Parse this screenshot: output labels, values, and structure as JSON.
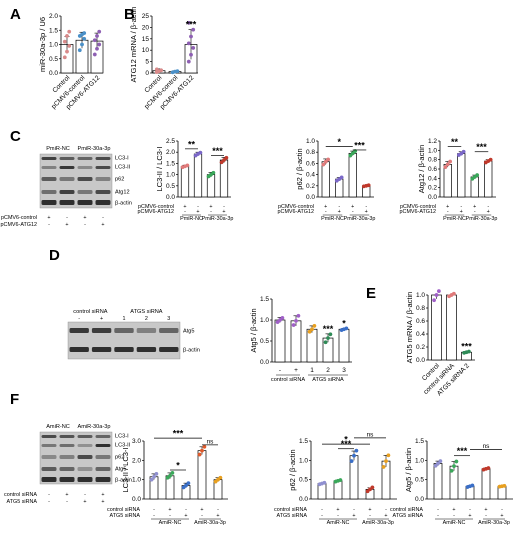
{
  "chart_data": [
    {
      "id": "A",
      "type": "bar",
      "panel_label": "A",
      "ylabel": "miR-30a-3p / U6",
      "ylim": [
        0,
        2.0
      ],
      "yticks": [
        0.0,
        0.5,
        1.0,
        1.5,
        2.0
      ],
      "categories": [
        "Control",
        "pCMV6-control",
        "pCMV6-ATG12"
      ],
      "values": [
        1.0,
        1.15,
        1.12
      ],
      "errors": [
        0.28,
        0.28,
        0.28
      ],
      "point_colors": [
        "#d98a8a",
        "#4a90c8",
        "#8e5fb3"
      ],
      "points": [
        [
          0.55,
          0.75,
          0.95,
          1.1,
          1.3,
          1.45
        ],
        [
          0.8,
          1.0,
          1.2,
          1.3,
          1.35,
          1.4
        ],
        [
          0.65,
          0.85,
          1.0,
          1.15,
          1.3,
          1.45
        ]
      ]
    },
    {
      "id": "B",
      "type": "bar",
      "panel_label": "B",
      "ylabel": "ATG12 mRNA / β-actin",
      "ylim": [
        0,
        25
      ],
      "yticks": [
        0,
        5,
        10,
        15,
        20,
        25
      ],
      "categories": [
        "Control",
        "pCMV6-control",
        "pCMV6-ATG12"
      ],
      "values": [
        1.0,
        0.6,
        12.5
      ],
      "errors": [
        0.8,
        0.4,
        6.5
      ],
      "point_colors": [
        "#d98a8a",
        "#4a90c8",
        "#8e5fb3"
      ],
      "points": [
        [
          0.4,
          0.8,
          1.2,
          1.6
        ],
        [
          0.3,
          0.6,
          0.8
        ],
        [
          5,
          8,
          11,
          13,
          16,
          19,
          22
        ]
      ],
      "sig": [
        {
          "text": "***",
          "over": 2
        }
      ]
    },
    {
      "id": "C1",
      "type": "bar",
      "ylabel": "LC3-II / LC3-I",
      "ylim": [
        0,
        2.5
      ],
      "yticks": [
        0.0,
        0.5,
        1.0,
        1.5,
        2.0,
        2.5
      ],
      "values": [
        1.37,
        1.92,
        1.0,
        1.65
      ],
      "errors": [
        0.05,
        0.08,
        0.1,
        0.12
      ],
      "point_colors": [
        "#e07a7a",
        "#7b68c8",
        "#3aa85a",
        "#c0392b"
      ],
      "points": [
        [
          1.33,
          1.37,
          1.41
        ],
        [
          1.85,
          1.92,
          1.98
        ],
        [
          0.92,
          1.0,
          1.08
        ],
        [
          1.55,
          1.65,
          1.75
        ]
      ],
      "sig": [
        {
          "text": "**",
          "a": 0,
          "b": 1,
          "level": 2.15
        },
        {
          "text": "***",
          "a": 2,
          "b": 3,
          "level": 1.85
        }
      ],
      "rows": [
        {
          "label": "pCMV6-control",
          "marks": [
            "+",
            "-",
            "+",
            "-"
          ]
        },
        {
          "label": "pCMV6-ATG12",
          "marks": [
            "-",
            "+",
            "-",
            "+"
          ]
        }
      ],
      "groups": [
        "PmiR-NC",
        "PmiR-30a-3p"
      ]
    },
    {
      "id": "C2",
      "type": "bar",
      "ylabel": "p62 / β-actin",
      "ylim": [
        0,
        1.0
      ],
      "yticks": [
        0.0,
        0.2,
        0.4,
        0.6,
        0.8,
        1.0
      ],
      "values": [
        0.63,
        0.32,
        0.78,
        0.2
      ],
      "errors": [
        0.05,
        0.03,
        0.04,
        0.01
      ],
      "point_colors": [
        "#e07a7a",
        "#7b68c8",
        "#3aa85a",
        "#c0392b"
      ],
      "points": [
        [
          0.58,
          0.63,
          0.67
        ],
        [
          0.29,
          0.32,
          0.35
        ],
        [
          0.74,
          0.78,
          0.82
        ],
        [
          0.19,
          0.2,
          0.21
        ]
      ],
      "sig": [
        {
          "text": "*",
          "a": 0,
          "b": 2,
          "level": 0.9
        },
        {
          "text": "***",
          "a": 2,
          "b": 3,
          "level": 0.84
        }
      ],
      "rows": [
        {
          "label": "pCMV6-control",
          "marks": [
            "+",
            "-",
            "+",
            "-"
          ]
        },
        {
          "label": "pCMV6-ATG12",
          "marks": [
            "-",
            "+",
            "-",
            "+"
          ]
        }
      ],
      "groups": [
        "PmiR-NC",
        "PmiR-30a-3p"
      ]
    },
    {
      "id": "C3",
      "type": "bar",
      "ylabel": "Atg12 / β-actin",
      "ylim": [
        0,
        1.2
      ],
      "yticks": [
        0.0,
        0.2,
        0.4,
        0.6,
        0.8,
        1.0,
        1.2
      ],
      "values": [
        0.7,
        0.93,
        0.43,
        0.77
      ],
      "errors": [
        0.06,
        0.04,
        0.04,
        0.03
      ],
      "point_colors": [
        "#e07a7a",
        "#7b68c8",
        "#3aa85a",
        "#c0392b"
      ],
      "points": [
        [
          0.64,
          0.7,
          0.76
        ],
        [
          0.9,
          0.93,
          0.97
        ],
        [
          0.39,
          0.43,
          0.47
        ],
        [
          0.74,
          0.77,
          0.8
        ]
      ],
      "sig": [
        {
          "text": "**",
          "a": 0,
          "b": 1,
          "level": 1.08
        },
        {
          "text": "***",
          "a": 2,
          "b": 3,
          "level": 0.97
        }
      ],
      "rows": [
        {
          "label": "pCMV6-control",
          "marks": [
            "+",
            "-",
            "+",
            "-"
          ]
        },
        {
          "label": "pCMV6-ATG12",
          "marks": [
            "-",
            "+",
            "-",
            "+"
          ]
        }
      ],
      "groups": [
        "PmiR-NC",
        "PmiR-30a-3p"
      ]
    },
    {
      "id": "D",
      "type": "bar",
      "panel_label": "D",
      "ylabel": "Atg5 / β-actin",
      "ylim": [
        0,
        1.5
      ],
      "yticks": [
        0.0,
        0.5,
        1.0,
        1.5
      ],
      "categories": [
        "-",
        "+",
        "1",
        "2",
        "3"
      ],
      "values": [
        1.0,
        0.98,
        0.78,
        0.57,
        0.78
      ],
      "errors": [
        0.06,
        0.12,
        0.08,
        0.1,
        0.02
      ],
      "point_colors": [
        "#a060c8",
        "#a060c8",
        "#e8a020",
        "#2e8b57",
        "#3a6fc8"
      ],
      "points": [
        [
          0.95,
          1.0,
          1.05
        ],
        [
          0.88,
          0.98,
          1.1
        ],
        [
          0.72,
          0.78,
          0.86
        ],
        [
          0.47,
          0.57,
          0.66
        ],
        [
          0.76,
          0.78,
          0.8
        ]
      ],
      "sig": [
        {
          "text": "***",
          "over": 3
        },
        {
          "text": "*",
          "over": 4
        }
      ],
      "group_labels": [
        "control siRNA",
        "ATG5 siRNA"
      ]
    },
    {
      "id": "E",
      "type": "bar",
      "panel_label": "E",
      "ylabel": "ATG5 mRNA / β-actin",
      "ylim": [
        0,
        1.0
      ],
      "yticks": [
        0.0,
        0.2,
        0.4,
        0.6,
        0.8,
        1.0
      ],
      "categories": [
        "Control",
        "control siRNA",
        "ATG5 siRNA 2"
      ],
      "values": [
        1.0,
        1.0,
        0.12
      ],
      "errors": [
        0.06,
        0.02,
        0.01
      ],
      "point_colors": [
        "#a060c8",
        "#e07a7a",
        "#2e8b57"
      ],
      "points": [
        [
          0.92,
          1.0,
          1.06
        ],
        [
          0.98,
          1.0,
          1.02
        ],
        [
          0.11,
          0.12,
          0.13
        ]
      ],
      "sig": [
        {
          "text": "***",
          "over": 2
        }
      ]
    },
    {
      "id": "F1",
      "type": "bar",
      "panel_label": "F",
      "ylabel": "LC3-II / LC3-I",
      "ylim": [
        0,
        3
      ],
      "yticks": [
        0,
        1,
        2,
        3
      ],
      "values": [
        1.15,
        1.2,
        0.7,
        2.5,
        1.0
      ],
      "errors": [
        0.15,
        0.15,
        0.12,
        0.2,
        0.1
      ],
      "point_colors": [
        "#9090d0",
        "#3aa85a",
        "#3a6fc8",
        "#e05a2a",
        "#e8a020"
      ],
      "points": [
        [
          1.0,
          1.15,
          1.3
        ],
        [
          1.1,
          1.2,
          1.35
        ],
        [
          0.6,
          0.7,
          0.82
        ],
        [
          2.3,
          2.5,
          2.7
        ],
        [
          0.9,
          1.0,
          1.1
        ]
      ],
      "sig": [
        {
          "text": "*",
          "a": 1,
          "b": 2,
          "level": 1.5
        },
        {
          "text": "***",
          "a": 0,
          "b": 3,
          "level": 3.15
        },
        {
          "text": "ns",
          "a": 3,
          "b": 4,
          "level": 2.8
        }
      ],
      "rows": [
        {
          "label": "control siRNA",
          "marks": [
            "-",
            "+",
            "-",
            "+",
            "-"
          ]
        },
        {
          "label": "ATG5 siRNA",
          "marks": [
            "-",
            "-",
            "+",
            "-",
            "+"
          ]
        }
      ],
      "groups": [
        "AmiR-NC",
        "AmiR-30a-3p"
      ]
    },
    {
      "id": "F2",
      "type": "bar",
      "ylabel": "p62 / β-actin",
      "ylim": [
        0,
        1.5
      ],
      "yticks": [
        0.0,
        0.5,
        1.0,
        1.5
      ],
      "values": [
        0.4,
        0.47,
        1.12,
        0.25,
        0.98
      ],
      "errors": [
        0.02,
        0.02,
        0.12,
        0.04,
        0.15
      ],
      "point_colors": [
        "#9090d0",
        "#3aa85a",
        "#3a6fc8",
        "#c0392b",
        "#e8a020"
      ],
      "points": [
        [
          0.38,
          0.4,
          0.42
        ],
        [
          0.45,
          0.47,
          0.49
        ],
        [
          0.98,
          1.12,
          1.25
        ],
        [
          0.2,
          0.25,
          0.3
        ],
        [
          0.83,
          0.98,
          1.13
        ]
      ],
      "sig": [
        {
          "text": "***",
          "a": 1,
          "b": 2,
          "level": 1.3
        },
        {
          "text": "*",
          "a": 0,
          "b": 3,
          "level": 1.42
        },
        {
          "text": "ns",
          "a": 2,
          "b": 4,
          "level": 1.58
        }
      ],
      "rows": [
        {
          "label": "control siRNA",
          "marks": [
            "-",
            "+",
            "-",
            "+",
            "-"
          ]
        },
        {
          "label": "ATG5 siRNA",
          "marks": [
            "-",
            "-",
            "+",
            "-",
            "+"
          ]
        }
      ],
      "groups": [
        "AmiR-NC",
        "AmiR-30a-3p"
      ]
    },
    {
      "id": "F3",
      "type": "bar",
      "ylabel": "Atg5 / β-actin",
      "ylim": [
        0,
        1.5
      ],
      "yticks": [
        0.0,
        0.5,
        1.0,
        1.5
      ],
      "values": [
        0.92,
        0.85,
        0.33,
        0.78,
        0.33
      ],
      "errors": [
        0.06,
        0.12,
        0.02,
        0.02,
        0.01
      ],
      "point_colors": [
        "#9090d0",
        "#3aa85a",
        "#3a6fc8",
        "#c0392b",
        "#e8a020"
      ],
      "points": [
        [
          0.86,
          0.92,
          0.98
        ],
        [
          0.73,
          0.85,
          0.97
        ],
        [
          0.31,
          0.33,
          0.35
        ],
        [
          0.76,
          0.78,
          0.8
        ],
        [
          0.32,
          0.33,
          0.34
        ]
      ],
      "sig": [
        {
          "text": "***",
          "a": 1,
          "b": 2,
          "level": 1.12
        },
        {
          "text": "ns",
          "a": 2,
          "b": 4,
          "level": 1.28
        }
      ],
      "rows": [
        {
          "label": "control siRNA",
          "marks": [
            "-",
            "+",
            "-",
            "+",
            "-"
          ]
        },
        {
          "label": "ATG5 siRNA",
          "marks": [
            "-",
            "-",
            "+",
            "-",
            "+"
          ]
        }
      ],
      "groups": [
        "AmiR-NC",
        "AmiR-30a-3p"
      ]
    }
  ],
  "labels": {
    "C": "C"
  },
  "blots": {
    "C": {
      "headers": [
        "PmiR-NC",
        "PmiR-30a-3p"
      ],
      "bands": [
        "LC3-I",
        "LC3-II",
        "p62",
        "Atg12",
        "β-actin"
      ],
      "rows": [
        {
          "label": "pCMV6-control",
          "marks": [
            "+",
            "-",
            "+",
            "-"
          ]
        },
        {
          "label": "pCMV6-ATG12",
          "marks": [
            "-",
            "+",
            "-",
            "+"
          ]
        }
      ]
    },
    "D": {
      "headers": [
        "control siRNA",
        "ATGS siRNA"
      ],
      "lanes": [
        "-",
        "+",
        "1",
        "2",
        "3"
      ],
      "bands": [
        "Atg5",
        "β-actin"
      ]
    },
    "F": {
      "headers": [
        "AmiR-NC",
        "AmiR-30a-3p"
      ],
      "bands": [
        "LC3-I",
        "LC3-II",
        "p62",
        "Atg5",
        "β-actin"
      ],
      "rows": [
        {
          "label": "control siRNA",
          "marks": [
            "-",
            "+",
            "-",
            "+"
          ]
        },
        {
          "label": "ATG5 siRNA",
          "marks": [
            "-",
            "-",
            "+",
            "+"
          ]
        }
      ]
    }
  }
}
